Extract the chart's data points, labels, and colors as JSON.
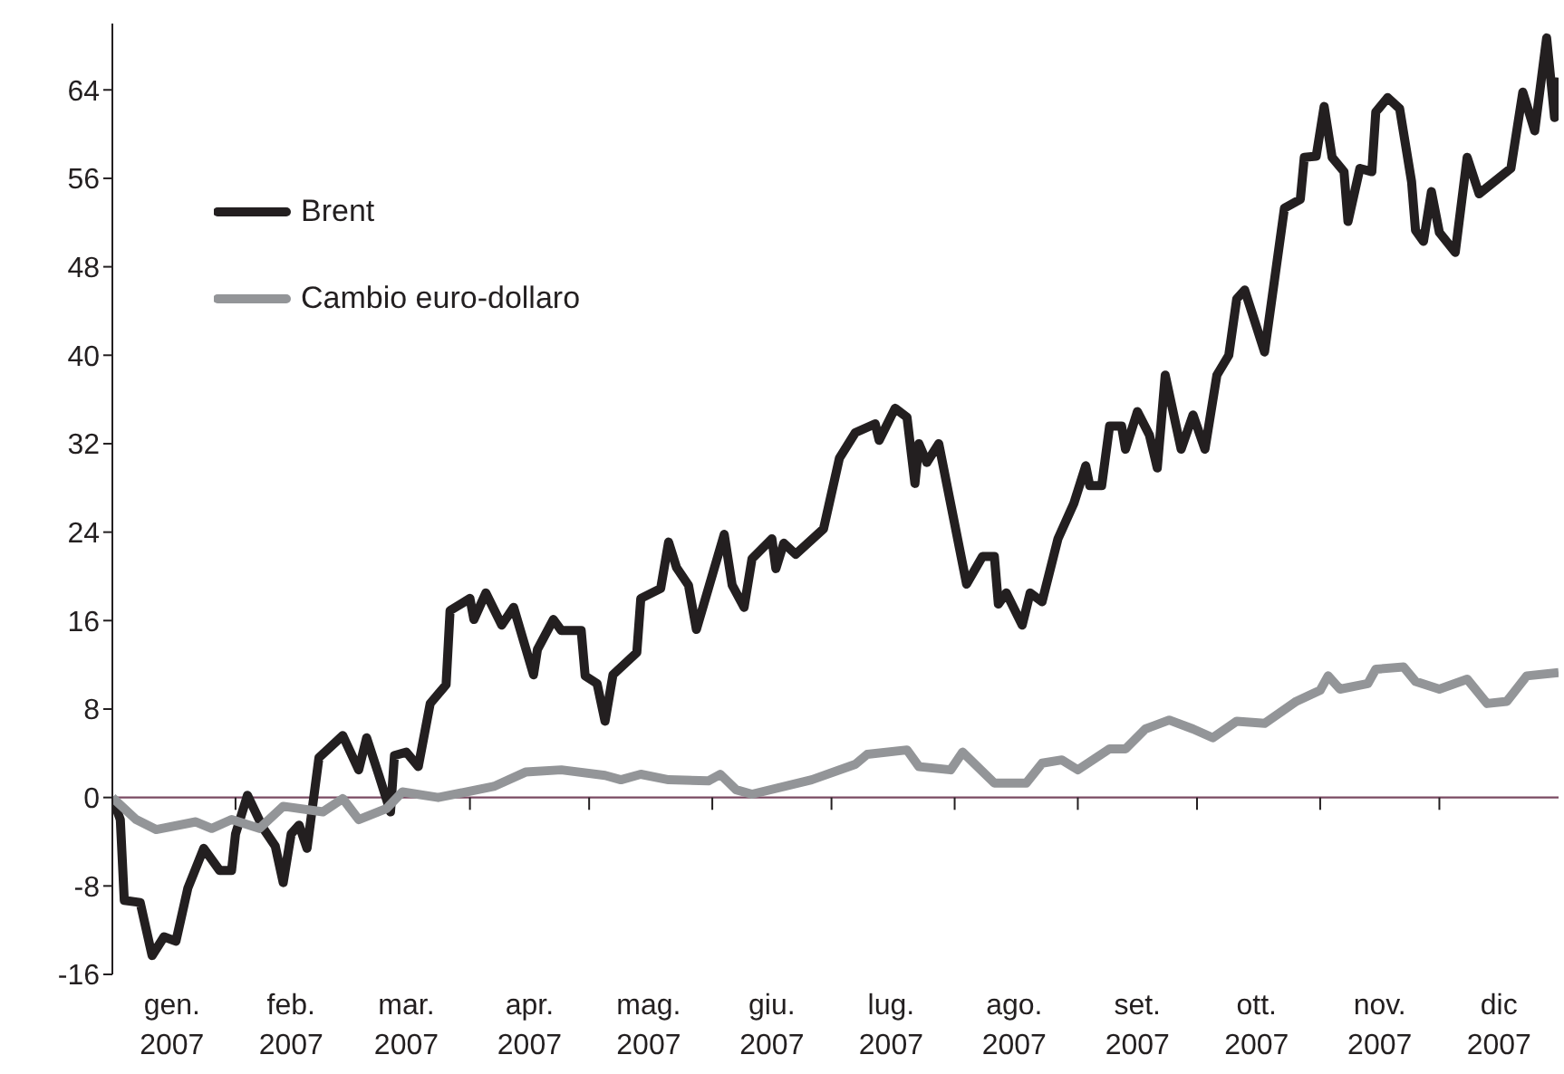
{
  "chart_data": {
    "type": "line",
    "xlim": [
      "2007-01-01",
      "2007-12-31"
    ],
    "xticks": [
      {
        "value": "2007-01-16",
        "label": "gen. 2007"
      },
      {
        "value": "2007-02-01",
        "label": null
      },
      {
        "value": "2007-02-15",
        "label": "feb. 2007"
      },
      {
        "value": "2007-03-01",
        "label": null
      },
      {
        "value": "2007-03-16",
        "label": "mar. 2007"
      },
      {
        "value": "2007-04-01",
        "label": null
      },
      {
        "value": "2007-04-16",
        "label": "apr. 2007"
      },
      {
        "value": "2007-05-01",
        "label": null
      },
      {
        "value": "2007-05-16",
        "label": "mag. 2007"
      },
      {
        "value": "2007-06-01",
        "label": null
      },
      {
        "value": "2007-06-16",
        "label": "giu. 2007"
      },
      {
        "value": "2007-07-01",
        "label": null
      },
      {
        "value": "2007-07-16",
        "label": "lug. 2007"
      },
      {
        "value": "2007-08-01",
        "label": null
      },
      {
        "value": "2007-08-16",
        "label": "ago. 2007"
      },
      {
        "value": "2007-09-01",
        "label": null
      },
      {
        "value": "2007-09-16",
        "label": "set. 2007"
      },
      {
        "value": "2007-10-01",
        "label": null
      },
      {
        "value": "2007-10-16",
        "label": "ott. 2007"
      },
      {
        "value": "2007-11-01",
        "label": null
      },
      {
        "value": "2007-11-16",
        "label": "nov. 2007"
      },
      {
        "value": "2007-12-01",
        "label": null
      },
      {
        "value": "2007-12-16",
        "label": "dic 2007"
      }
    ],
    "ylim": [
      -16,
      70
    ],
    "yticks": [
      -16,
      -8,
      0,
      8,
      16,
      24,
      32,
      40,
      48,
      56,
      64
    ],
    "ref_lines": [
      {
        "axis": "y",
        "value": 0,
        "color": "#7a4a62"
      }
    ],
    "legend": "top left",
    "grid": false,
    "marker": "none",
    "line_style": "solid",
    "series": [
      {
        "name": "Brent",
        "color": "#231f20",
        "x": [
          "2007-01-01",
          "2007-01-03",
          "2007-01-04",
          "2007-01-08",
          "2007-01-11",
          "2007-01-14",
          "2007-01-17",
          "2007-01-20",
          "2007-01-24",
          "2007-01-28",
          "2007-01-31",
          "2007-02-01",
          "2007-02-04",
          "2007-02-08",
          "2007-02-11",
          "2007-02-13",
          "2007-02-15",
          "2007-02-17",
          "2007-02-19",
          "2007-02-22",
          "2007-02-28",
          "2007-03-04",
          "2007-03-06",
          "2007-03-09",
          "2007-03-12",
          "2007-03-13",
          "2007-03-16",
          "2007-03-19",
          "2007-03-22",
          "2007-03-26",
          "2007-03-27",
          "2007-04-01",
          "2007-04-02",
          "2007-04-05",
          "2007-04-09",
          "2007-04-12",
          "2007-04-17",
          "2007-04-18",
          "2007-04-22",
          "2007-04-24",
          "2007-04-29",
          "2007-04-30",
          "2007-05-03",
          "2007-05-05",
          "2007-05-07",
          "2007-05-13",
          "2007-05-14",
          "2007-05-19",
          "2007-05-21",
          "2007-05-23",
          "2007-05-26",
          "2007-05-28",
          "2007-06-04",
          "2007-06-06",
          "2007-06-09",
          "2007-06-11",
          "2007-06-16",
          "2007-06-17",
          "2007-06-19",
          "2007-06-22",
          "2007-06-29",
          "2007-07-03",
          "2007-07-07",
          "2007-07-12",
          "2007-07-13",
          "2007-07-17",
          "2007-07-20",
          "2007-07-22",
          "2007-07-23",
          "2007-07-25",
          "2007-07-28",
          "2007-08-04",
          "2007-08-08",
          "2007-08-11",
          "2007-08-12",
          "2007-08-14",
          "2007-08-18",
          "2007-08-20",
          "2007-08-23",
          "2007-08-27",
          "2007-08-31",
          "2007-09-03",
          "2007-09-04",
          "2007-09-07",
          "2007-09-09",
          "2007-09-12",
          "2007-09-13",
          "2007-09-16",
          "2007-09-19",
          "2007-09-21",
          "2007-09-23",
          "2007-09-27",
          "2007-09-30",
          "2007-10-03",
          "2007-10-06",
          "2007-10-09",
          "2007-10-11",
          "2007-10-13",
          "2007-10-18",
          "2007-10-23",
          "2007-10-27",
          "2007-10-28",
          "2007-10-31",
          "2007-11-02",
          "2007-11-04",
          "2007-11-07",
          "2007-11-08",
          "2007-11-11",
          "2007-11-14",
          "2007-11-15",
          "2007-11-18",
          "2007-11-21",
          "2007-11-24",
          "2007-11-25",
          "2007-11-27",
          "2007-11-29",
          "2007-12-01",
          "2007-12-05",
          "2007-12-08",
          "2007-12-11",
          "2007-12-19",
          "2007-12-22",
          "2007-12-25",
          "2007-12-28",
          "2007-12-29",
          "2007-12-30",
          "2007-12-31"
        ],
        "values": [
          0,
          -2,
          -9.3,
          -9.5,
          -14.3,
          -12.6,
          -13,
          -8.2,
          -4.6,
          -6.6,
          -6.6,
          -3.3,
          0.2,
          -2.8,
          -4.4,
          -7.7,
          -3.3,
          -2.5,
          -4.6,
          3.6,
          5.6,
          2.5,
          5.4,
          2.1,
          -1.3,
          3.8,
          4.1,
          2.8,
          8.5,
          10.2,
          16.9,
          18,
          16.1,
          18.5,
          15.6,
          17.2,
          11.1,
          13.4,
          16.1,
          15.1,
          15.1,
          11,
          10.3,
          6.9,
          11.1,
          13.1,
          18,
          18.9,
          23.1,
          20.8,
          19.2,
          15.2,
          23.8,
          19.2,
          17.2,
          21.6,
          23.4,
          20.7,
          23,
          22,
          24.3,
          30.7,
          33,
          33.8,
          32.3,
          35.2,
          34.4,
          28.4,
          32,
          30.3,
          32,
          19.3,
          21.8,
          21.8,
          17.5,
          18.5,
          15.6,
          18.5,
          17.7,
          23.4,
          26.6,
          30,
          28.2,
          28.2,
          33.6,
          33.6,
          31.5,
          34.9,
          32.8,
          29.8,
          38.2,
          31.5,
          34.6,
          31.5,
          38.2,
          40,
          45.1,
          45.9,
          40.3,
          53.3,
          54.1,
          57.9,
          58,
          62.5,
          57.9,
          56.6,
          52.1,
          56.9,
          56.6,
          62,
          63.3,
          62.3,
          55.7,
          51.3,
          50.3,
          54.8,
          51.1,
          49.3,
          57.9,
          54.6,
          56.9,
          63.8,
          60.3,
          68.7,
          65.1,
          61.5,
          65.1
        ]
      },
      {
        "name": "Cambio euro-dollaro",
        "color": "#939598",
        "x": [
          "2007-01-01",
          "2007-01-07",
          "2007-01-12",
          "2007-01-22",
          "2007-01-26",
          "2007-01-31",
          "2007-02-07",
          "2007-02-13",
          "2007-02-23",
          "2007-02-28",
          "2007-03-04",
          "2007-03-11",
          "2007-03-15",
          "2007-03-24",
          "2007-04-07",
          "2007-04-15",
          "2007-04-24",
          "2007-05-05",
          "2007-05-09",
          "2007-05-14",
          "2007-05-21",
          "2007-05-31",
          "2007-06-03",
          "2007-06-07",
          "2007-06-11",
          "2007-06-26",
          "2007-07-07",
          "2007-07-10",
          "2007-07-20",
          "2007-07-23",
          "2007-07-31",
          "2007-08-03",
          "2007-08-11",
          "2007-08-19",
          "2007-08-23",
          "2007-08-28",
          "2007-09-01",
          "2007-09-09",
          "2007-09-13",
          "2007-09-18",
          "2007-09-24",
          "2007-09-30",
          "2007-10-05",
          "2007-10-11",
          "2007-10-18",
          "2007-10-26",
          "2007-11-01",
          "2007-11-03",
          "2007-11-06",
          "2007-11-13",
          "2007-11-15",
          "2007-11-22",
          "2007-11-25",
          "2007-12-01",
          "2007-12-08",
          "2007-12-13",
          "2007-12-18",
          "2007-12-23",
          "2007-12-31"
        ],
        "values": [
          0,
          -2,
          -2.9,
          -2.2,
          -2.8,
          -2,
          -2.8,
          -0.8,
          -1.3,
          -0.1,
          -2,
          -1,
          0.5,
          0,
          1,
          2.3,
          2.5,
          2,
          1.6,
          2.1,
          1.6,
          1.5,
          2.1,
          0.7,
          0.3,
          1.6,
          3,
          3.9,
          4.3,
          2.8,
          2.5,
          4.1,
          1.3,
          1.3,
          3.1,
          3.4,
          2.5,
          4.4,
          4.4,
          6.2,
          7,
          6.2,
          5.4,
          6.9,
          6.7,
          8.7,
          9.7,
          11,
          9.8,
          10.3,
          11.6,
          11.8,
          10.5,
          9.8,
          10.7,
          8.5,
          8.7,
          11,
          11.3
        ]
      }
    ]
  }
}
